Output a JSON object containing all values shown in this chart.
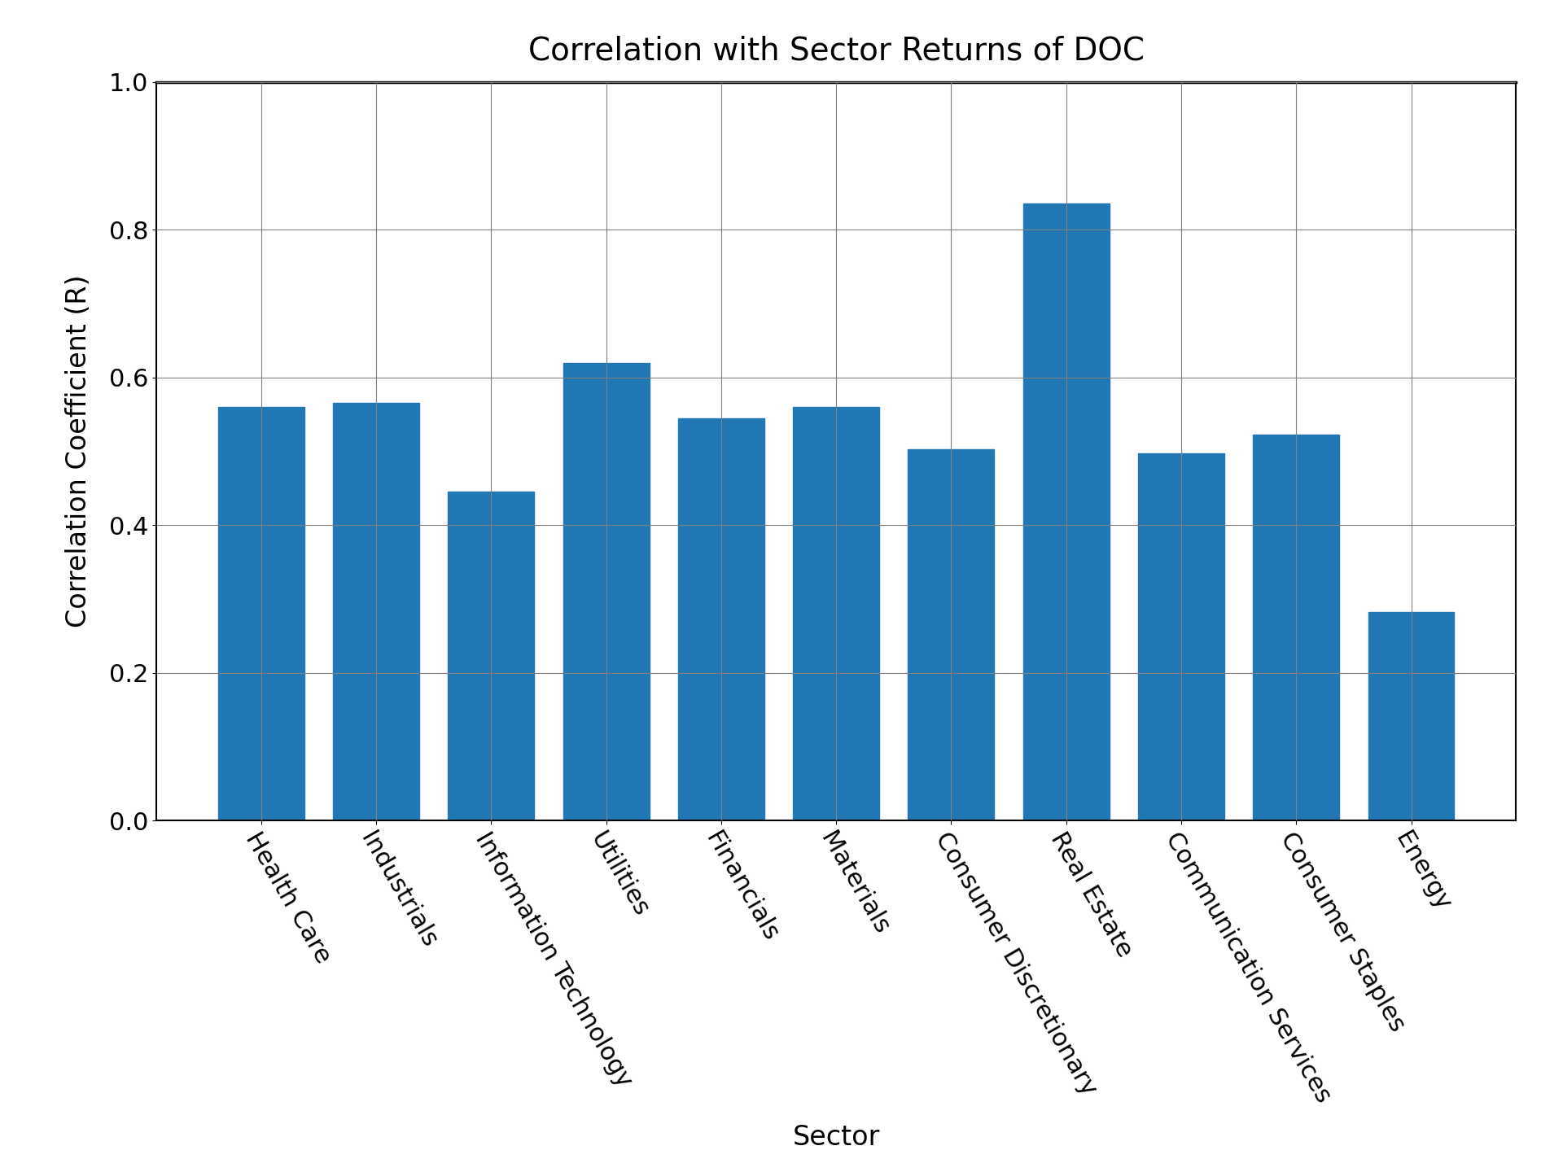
{
  "title": "Correlation with Sector Returns of DOC",
  "xlabel": "Sector",
  "ylabel": "Correlation Coefficient (R)",
  "categories": [
    "Health Care",
    "Industrials",
    "Information Technology",
    "Utilities",
    "Financials",
    "Materials",
    "Consumer Discretionary",
    "Real Estate",
    "Communication Services",
    "Consumer Staples",
    "Energy"
  ],
  "values": [
    0.56,
    0.565,
    0.445,
    0.62,
    0.545,
    0.56,
    0.503,
    0.835,
    0.497,
    0.523,
    0.282
  ],
  "bar_color": "#2077b4",
  "ylim": [
    0.0,
    1.0
  ],
  "yticks": [
    0.0,
    0.2,
    0.4,
    0.6,
    0.8,
    1.0
  ],
  "title_fontsize": 28,
  "label_fontsize": 24,
  "tick_fontsize": 22,
  "bar_width": 0.75,
  "grid": true,
  "background_color": "#ffffff"
}
